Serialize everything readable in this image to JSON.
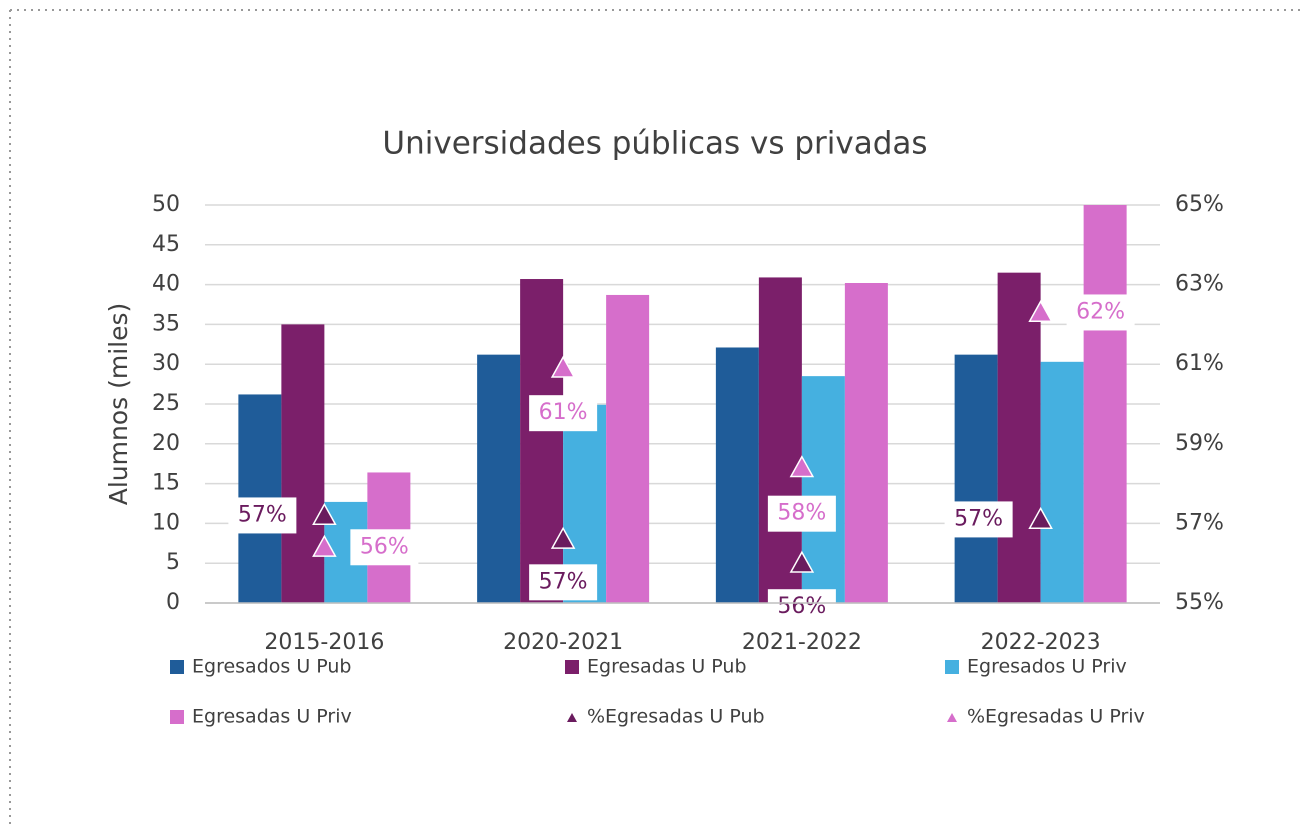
{
  "chart_data": {
    "type": "bar",
    "title": "Universidades públicas vs privadas",
    "ylabel": "Alumnos (miles)",
    "categories": [
      "2015-2016",
      "2020-2021",
      "2021-2022",
      "2022-2023"
    ],
    "ylim": [
      0,
      50
    ],
    "yticks": [
      0,
      5,
      10,
      15,
      20,
      25,
      30,
      35,
      40,
      45,
      50
    ],
    "y2lim": [
      55,
      65
    ],
    "y2ticks": [
      {
        "value": 55,
        "label": "55%"
      },
      {
        "value": 57,
        "label": "57%"
      },
      {
        "value": 59,
        "label": "59%"
      },
      {
        "value": 61,
        "label": "61%"
      },
      {
        "value": 63,
        "label": "63%"
      },
      {
        "value": 65,
        "label": "65%"
      }
    ],
    "grid": true,
    "series": [
      {
        "name": "Egresados U Pub",
        "color": "#1f5c99",
        "values": [
          26.2,
          31.2,
          32.1,
          31.2
        ]
      },
      {
        "name": "Egresadas U Pub",
        "color": "#7b1f6a",
        "values": [
          35,
          40.7,
          40.9,
          41.5
        ]
      },
      {
        "name": "Egresados U Priv",
        "color": "#45b0e0",
        "values": [
          12.7,
          24.9,
          28.5,
          30.3
        ]
      },
      {
        "name": "Egresadas U Priv",
        "color": "#d66ecb",
        "values": [
          16.4,
          38.7,
          40.2,
          50
        ]
      },
      {
        "name": "%Egresadas U Pub",
        "type": "scatter",
        "axis": "y2",
        "color": "#6a1b5e",
        "values": [
          57.2,
          56.6,
          56.0,
          57.1
        ],
        "value_labels": [
          "57%",
          "57%",
          "56%",
          "57%"
        ]
      },
      {
        "name": "%Egresadas U Priv",
        "type": "scatter",
        "axis": "y2",
        "color": "#d66ecb",
        "values": [
          56.4,
          60.9,
          58.4,
          62.3
        ],
        "value_labels": [
          "56%",
          "61%",
          "58%",
          "62%"
        ]
      }
    ]
  }
}
